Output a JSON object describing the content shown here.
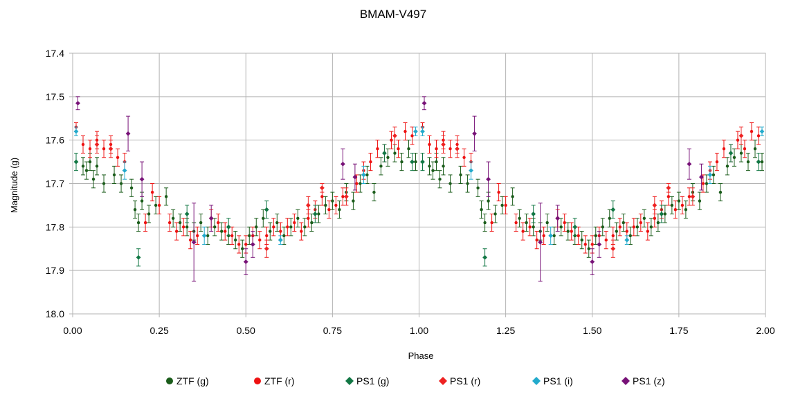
{
  "chart_data": {
    "type": "scatter",
    "title": "BMAM-V497",
    "xlabel": "Phase",
    "ylabel": "Magnitude (g)",
    "xlim": [
      0,
      2
    ],
    "ylim": [
      17.4,
      18.0
    ],
    "y_inverted": true,
    "x_ticks": [
      "0.00",
      "0.25",
      "0.50",
      "0.75",
      "1.00",
      "1.25",
      "1.50",
      "1.75",
      "2.00"
    ],
    "y_ticks": [
      "17.4",
      "17.5",
      "17.6",
      "17.7",
      "17.8",
      "17.9",
      "18.0"
    ],
    "grid": true,
    "legend_position": "bottom",
    "repeat_period": 1,
    "series": [
      {
        "name": "ZTF (g)",
        "marker": "circle",
        "color": "#1a5c1a",
        "points": [
          [
            0.03,
            17.66,
            0.02
          ],
          [
            0.04,
            17.67,
            0.02
          ],
          [
            0.05,
            17.65,
            0.02
          ],
          [
            0.06,
            17.69,
            0.02
          ],
          [
            0.07,
            17.66,
            0.02
          ],
          [
            0.09,
            17.7,
            0.02
          ],
          [
            0.12,
            17.68,
            0.02
          ],
          [
            0.14,
            17.7,
            0.02
          ],
          [
            0.17,
            17.71,
            0.02
          ],
          [
            0.18,
            17.76,
            0.02
          ],
          [
            0.19,
            17.79,
            0.02
          ],
          [
            0.2,
            17.74,
            0.02
          ],
          [
            0.22,
            17.77,
            0.02
          ],
          [
            0.24,
            17.75,
            0.02
          ],
          [
            0.27,
            17.73,
            0.02
          ],
          [
            0.29,
            17.78,
            0.02
          ],
          [
            0.31,
            17.79,
            0.02
          ],
          [
            0.33,
            17.8,
            0.02
          ],
          [
            0.35,
            17.81,
            0.02
          ],
          [
            0.37,
            17.79,
            0.02
          ],
          [
            0.39,
            17.82,
            0.02
          ],
          [
            0.41,
            17.8,
            0.02
          ],
          [
            0.43,
            17.81,
            0.02
          ],
          [
            0.45,
            17.82,
            0.02
          ],
          [
            0.47,
            17.83,
            0.02
          ],
          [
            0.49,
            17.85,
            0.02
          ],
          [
            0.51,
            17.82,
            0.02
          ],
          [
            0.53,
            17.8,
            0.02
          ],
          [
            0.55,
            17.78,
            0.02
          ],
          [
            0.57,
            17.81,
            0.02
          ],
          [
            0.59,
            17.79,
            0.02
          ],
          [
            0.61,
            17.82,
            0.02
          ],
          [
            0.63,
            17.8,
            0.02
          ],
          [
            0.65,
            17.78,
            0.02
          ],
          [
            0.67,
            17.8,
            0.02
          ],
          [
            0.69,
            17.79,
            0.02
          ],
          [
            0.71,
            17.77,
            0.02
          ],
          [
            0.73,
            17.75,
            0.02
          ],
          [
            0.75,
            17.74,
            0.02
          ],
          [
            0.77,
            17.76,
            0.02
          ],
          [
            0.79,
            17.72,
            0.02
          ],
          [
            0.81,
            17.74,
            0.02
          ],
          [
            0.83,
            17.7,
            0.02
          ],
          [
            0.85,
            17.68,
            0.02
          ],
          [
            0.87,
            17.72,
            0.02
          ],
          [
            0.89,
            17.66,
            0.02
          ],
          [
            0.91,
            17.64,
            0.02
          ],
          [
            0.93,
            17.63,
            0.02
          ],
          [
            0.95,
            17.65,
            0.02
          ],
          [
            0.97,
            17.62,
            0.02
          ],
          [
            0.99,
            17.65,
            0.02
          ]
        ]
      },
      {
        "name": "ZTF (r)",
        "marker": "circle",
        "color": "#ee1111",
        "points": [
          [
            0.01,
            17.57,
            0.01
          ],
          [
            0.03,
            17.61,
            0.02
          ],
          [
            0.05,
            17.62,
            0.02
          ],
          [
            0.07,
            17.6,
            0.02
          ],
          [
            0.09,
            17.62,
            0.02
          ],
          [
            0.11,
            17.61,
            0.02
          ],
          [
            0.13,
            17.64,
            0.02
          ],
          [
            0.15,
            17.65,
            0.02
          ],
          [
            0.21,
            17.79,
            0.02
          ],
          [
            0.23,
            17.72,
            0.02
          ],
          [
            0.25,
            17.75,
            0.02
          ],
          [
            0.28,
            17.79,
            0.02
          ],
          [
            0.3,
            17.81,
            0.02
          ],
          [
            0.32,
            17.8,
            0.02
          ],
          [
            0.34,
            17.83,
            0.02
          ],
          [
            0.36,
            17.82,
            0.02
          ],
          [
            0.42,
            17.79,
            0.02
          ],
          [
            0.44,
            17.81,
            0.02
          ],
          [
            0.46,
            17.82,
            0.02
          ],
          [
            0.48,
            17.84,
            0.02
          ],
          [
            0.5,
            17.84,
            0.02
          ],
          [
            0.52,
            17.82,
            0.02
          ],
          [
            0.54,
            17.83,
            0.02
          ],
          [
            0.56,
            17.82,
            0.02
          ],
          [
            0.58,
            17.8,
            0.02
          ],
          [
            0.6,
            17.81,
            0.02
          ],
          [
            0.62,
            17.8,
            0.02
          ],
          [
            0.64,
            17.79,
            0.02
          ],
          [
            0.66,
            17.81,
            0.02
          ],
          [
            0.68,
            17.78,
            0.02
          ],
          [
            0.7,
            17.76,
            0.02
          ],
          [
            0.72,
            17.73,
            0.02
          ],
          [
            0.74,
            17.76,
            0.02
          ],
          [
            0.76,
            17.75,
            0.02
          ],
          [
            0.78,
            17.73,
            0.02
          ],
          [
            0.82,
            17.7,
            0.02
          ],
          [
            0.84,
            17.67,
            0.02
          ],
          [
            0.86,
            17.65,
            0.02
          ],
          [
            0.88,
            17.62,
            0.02
          ],
          [
            0.9,
            17.63,
            0.02
          ],
          [
            0.92,
            17.6,
            0.02
          ],
          [
            0.94,
            17.62,
            0.02
          ],
          [
            0.96,
            17.58,
            0.02
          ],
          [
            0.98,
            17.59,
            0.02
          ]
        ]
      },
      {
        "name": "PS1 (g)",
        "marker": "diamond",
        "color": "#117744",
        "points": [
          [
            0.01,
            17.65,
            0.02
          ],
          [
            0.19,
            17.87,
            0.02
          ],
          [
            0.33,
            17.77,
            0.02
          ],
          [
            0.45,
            17.8,
            0.02
          ],
          [
            0.56,
            17.76,
            0.02
          ],
          [
            0.7,
            17.77,
            0.02
          ],
          [
            0.9,
            17.63,
            0.02
          ],
          [
            0.98,
            17.65,
            0.02
          ]
        ]
      },
      {
        "name": "PS1 (r)",
        "marker": "diamond",
        "color": "#ee2222",
        "points": [
          [
            0.07,
            17.61,
            0.02
          ],
          [
            0.11,
            17.62,
            0.02
          ],
          [
            0.4,
            17.78,
            0.02
          ],
          [
            0.56,
            17.85,
            0.02
          ],
          [
            0.68,
            17.75,
            0.02
          ],
          [
            0.72,
            17.71,
            0.01
          ],
          [
            0.79,
            17.73,
            0.02
          ],
          [
            0.93,
            17.59,
            0.02
          ]
        ]
      },
      {
        "name": "PS1 (i)",
        "marker": "diamond",
        "color": "#22aacc",
        "points": [
          [
            0.01,
            17.58,
            0.01
          ],
          [
            0.15,
            17.67,
            0.02
          ],
          [
            0.38,
            17.82,
            0.02
          ],
          [
            0.6,
            17.83,
            0.01
          ],
          [
            0.84,
            17.68,
            0.02
          ],
          [
            0.99,
            17.58,
            0.01
          ]
        ]
      },
      {
        "name": "PS1 (z)",
        "marker": "diamond",
        "color": "#771177",
        "points": [
          [
            0.015,
            17.515,
            0.015
          ],
          [
            0.16,
            17.585,
            0.04
          ],
          [
            0.2,
            17.69,
            0.04
          ],
          [
            0.35,
            17.835,
            0.09
          ],
          [
            0.4,
            17.78,
            0.03
          ],
          [
            0.5,
            17.88,
            0.03
          ],
          [
            0.52,
            17.84,
            0.03
          ],
          [
            0.78,
            17.655,
            0.035
          ],
          [
            0.815,
            17.685,
            0.03
          ]
        ]
      }
    ]
  }
}
